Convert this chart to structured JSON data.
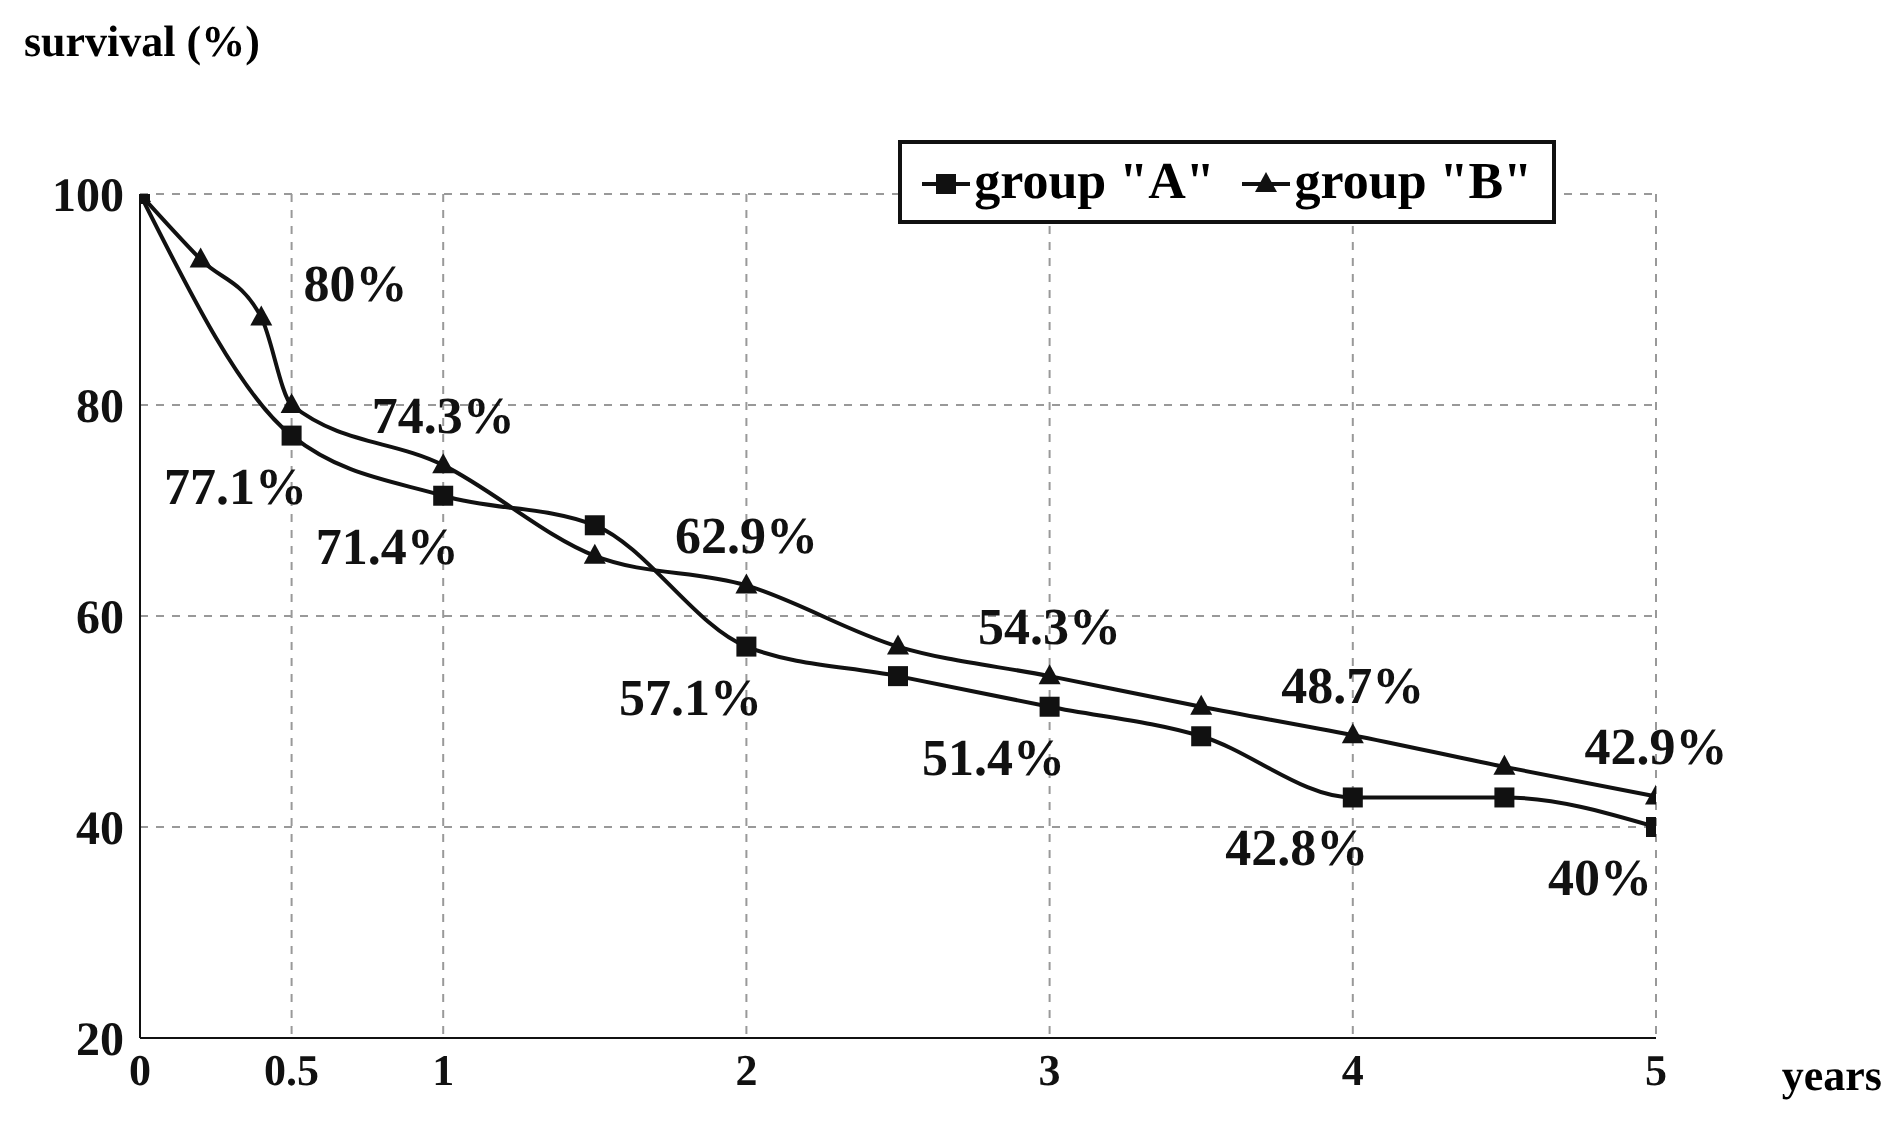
{
  "chart_data": {
    "type": "line",
    "ylabel": "survival (%)",
    "xlabel": "years",
    "xlim": [
      0,
      5
    ],
    "xticks": [
      0,
      0.5,
      1,
      2,
      3,
      4,
      5
    ],
    "ylim": [
      20,
      100
    ],
    "yticks": [
      20,
      40,
      60,
      80,
      100
    ],
    "grid": true,
    "legend": "top right",
    "line_style": "solid",
    "series": [
      {
        "name": "group \"A\"",
        "color": "#111111",
        "marker": "square",
        "x": [
          0,
          0.5,
          1,
          1.5,
          2,
          2.5,
          3,
          3.5,
          4,
          4.5,
          5
        ],
        "values": [
          100,
          77.1,
          71.4,
          68.6,
          57.1,
          54.3,
          51.4,
          48.6,
          42.8,
          42.8,
          40
        ],
        "value_labels": [
          null,
          "77.1%",
          "71.4%",
          null,
          "57.1%",
          null,
          "51.4%",
          null,
          "42.8%",
          null,
          "40%"
        ]
      },
      {
        "name": "group \"B\"",
        "color": "#111111",
        "marker": "triangle",
        "x": [
          0,
          0.2,
          0.4,
          0.5,
          1,
          1.5,
          2,
          2.5,
          3,
          3.5,
          4,
          4.5,
          5
        ],
        "values": [
          100,
          93.8,
          88.3,
          80,
          74.3,
          65.7,
          62.9,
          57.1,
          54.3,
          51.4,
          48.7,
          45.7,
          42.9
        ],
        "value_labels": [
          null,
          null,
          null,
          "80%",
          "74.3%",
          null,
          "62.9%",
          null,
          "54.3%",
          null,
          "48.7%",
          null,
          "42.9%"
        ]
      }
    ]
  }
}
